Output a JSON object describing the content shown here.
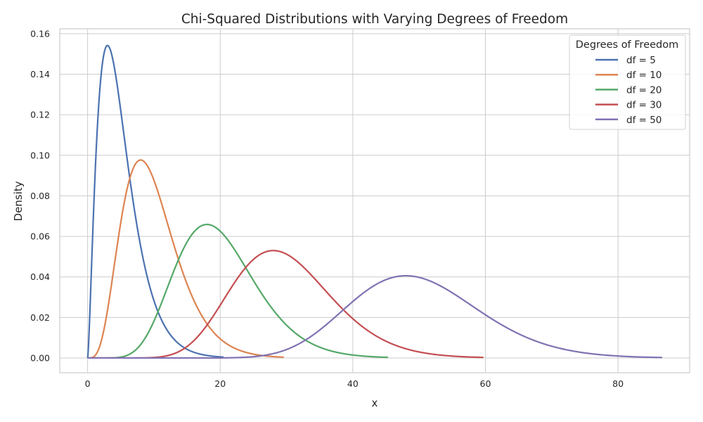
{
  "chart_data": {
    "type": "line",
    "title": "Chi-Squared Distributions with Varying Degrees of Freedom",
    "xlabel": "x",
    "ylabel": "Density",
    "xlim": [
      -4.2,
      90.8
    ],
    "ylim": [
      -0.0073,
      0.1624
    ],
    "xticks": [
      "0",
      "20",
      "40",
      "60",
      "80"
    ],
    "xtick_values": [
      0,
      20,
      40,
      60,
      80
    ],
    "yticks": [
      "0.00",
      "0.02",
      "0.04",
      "0.06",
      "0.08",
      "0.10",
      "0.12",
      "0.14",
      "0.16"
    ],
    "ytick_values": [
      0,
      0.02,
      0.04,
      0.06,
      0.08,
      0.1,
      0.12,
      0.14,
      0.16
    ],
    "grid": true,
    "legend": {
      "title": "Degrees of Freedom",
      "placement": "top-right"
    },
    "series": [
      {
        "name": "df = 5",
        "df": 5,
        "x_range": [
          0,
          20.52
        ],
        "peak": [
          3,
          0.154
        ],
        "color": "#4c72b0"
      },
      {
        "name": "df = 10",
        "df": 10,
        "x_range": [
          0,
          29.59
        ],
        "peak": [
          8,
          0.0977
        ],
        "color": "#dd8452"
      },
      {
        "name": "df = 20",
        "df": 20,
        "x_range": [
          0,
          45.31
        ],
        "peak": [
          18,
          0.0661
        ],
        "color": "#55a868"
      },
      {
        "name": "df = 30",
        "df": 30,
        "x_range": [
          0,
          59.7
        ],
        "peak": [
          28,
          0.0532
        ],
        "color": "#c44e52"
      },
      {
        "name": "df = 50",
        "df": 50,
        "x_range": [
          0,
          86.66
        ],
        "peak": [
          48,
          0.0406
        ],
        "color": "#8172b3"
      }
    ]
  }
}
